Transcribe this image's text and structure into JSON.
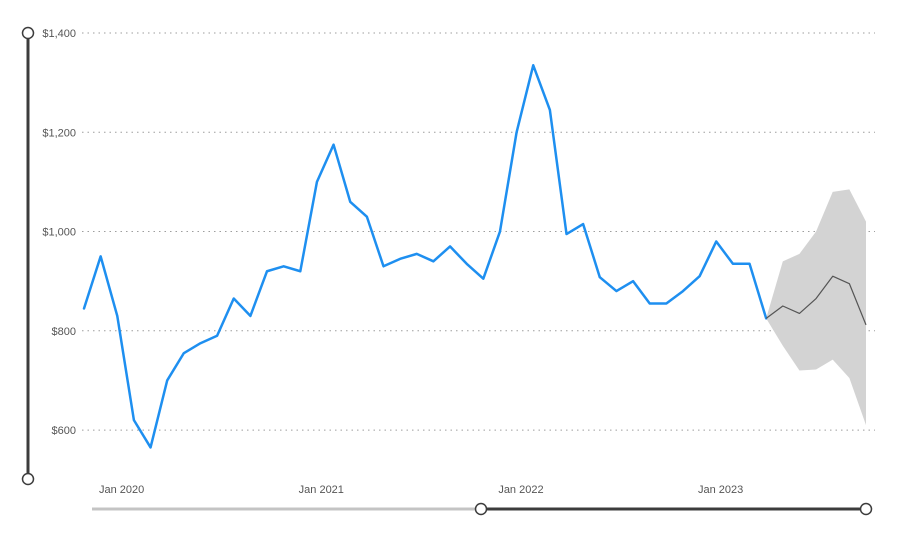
{
  "chart_data": {
    "type": "line",
    "y_tick_labels": [
      "$600",
      "$800",
      "$1,000",
      "$1,200",
      "$1,400"
    ],
    "y_ticks": [
      600,
      800,
      1000,
      1200,
      1400
    ],
    "ylim": [
      580,
      1400
    ],
    "x_tick_labels": [
      "Jan 2020",
      "Jan 2021",
      "Jan 2022",
      "Jan 2023"
    ],
    "x_ticks": [
      "2020-01",
      "2021-01",
      "2022-01",
      "2023-01"
    ],
    "grid": true,
    "series": [
      {
        "color": "#1e8ff0",
        "x": [
          "2019-12",
          "2020-01",
          "2020-02",
          "2020-03",
          "2020-04",
          "2020-05",
          "2020-06",
          "2020-07",
          "2020-08",
          "2020-09",
          "2020-10",
          "2020-11",
          "2020-12",
          "2021-01",
          "2021-02",
          "2021-03",
          "2021-04",
          "2021-05",
          "2021-06",
          "2021-07",
          "2021-08",
          "2021-09",
          "2021-10",
          "2021-11",
          "2021-12",
          "2022-01",
          "2022-02",
          "2022-03",
          "2022-04",
          "2022-05",
          "2022-06",
          "2022-07",
          "2022-08",
          "2022-09",
          "2022-10",
          "2022-11",
          "2022-12",
          "2023-01",
          "2023-02",
          "2023-03",
          "2023-04",
          "2023-05"
        ],
        "y": [
          845,
          950,
          830,
          620,
          565,
          700,
          755,
          775,
          790,
          865,
          830,
          920,
          930,
          920,
          1100,
          1175,
          1060,
          1030,
          930,
          945,
          955,
          940,
          970,
          935,
          905,
          1000,
          1200,
          1335,
          1245,
          995,
          1015,
          908,
          880,
          900,
          855,
          855,
          880,
          910,
          980,
          935,
          935,
          825
        ]
      }
    ],
    "forecast": {
      "color": "#555555",
      "band_color": "#d3d3d3",
      "x": [
        "2023-05",
        "2023-06",
        "2023-07",
        "2023-08",
        "2023-09",
        "2023-10",
        "2023-11"
      ],
      "y": [
        825,
        850,
        835,
        865,
        910,
        895,
        812
      ],
      "lower": [
        825,
        770,
        720,
        722,
        742,
        705,
        610
      ],
      "upper": [
        825,
        940,
        955,
        1000,
        1080,
        1085,
        1020
      ]
    },
    "zoom_range": [
      "2022-01",
      "2023-11"
    ]
  }
}
